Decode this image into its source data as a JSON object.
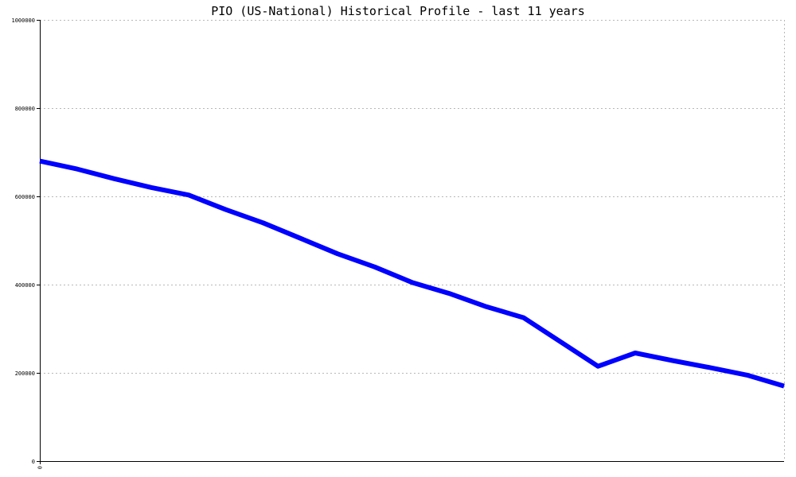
{
  "chart_data": {
    "type": "line",
    "title": "PIO (US-National) Historical Profile - last 11 years",
    "xlabel": "",
    "ylabel": "",
    "x_tick_labels": [
      "0"
    ],
    "y_ticks": [
      0,
      200000,
      400000,
      600000,
      800000,
      1000000
    ],
    "y_tick_labels": [
      "0",
      "200000",
      "400000",
      "600000",
      "800000",
      "1000000"
    ],
    "ylim": [
      0,
      1000000
    ],
    "grid": true,
    "colors": {
      "series": "#0000ff",
      "grid": "#b8b8b8",
      "axis": "#000000"
    },
    "series": [
      {
        "name": "",
        "values": [
          680000,
          662000,
          640000,
          620000,
          603000,
          570000,
          540000,
          505000,
          470000,
          440000,
          405000,
          380000,
          350000,
          325000,
          270000,
          215000,
          245000,
          228000,
          212000,
          195000,
          170000
        ]
      }
    ]
  }
}
